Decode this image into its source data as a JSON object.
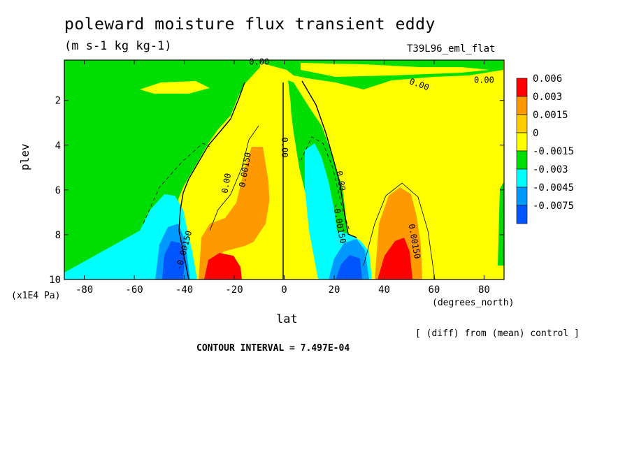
{
  "chart_data": {
    "type": "heatmap",
    "title": "poleward moisture flux transient eddy",
    "subtitle": "(m s-1 kg kg-1)",
    "experiment": "T39L96_eml_flat",
    "xlabel": "lat",
    "x_unit": "(degrees_north)",
    "ylabel": "plev",
    "y_unit": "(x1E4 Pa)",
    "xlim": [
      -88,
      88
    ],
    "ylim": [
      10,
      0.2
    ],
    "x_ticks": [
      -80,
      -60,
      -40,
      -20,
      0,
      20,
      40,
      60,
      80
    ],
    "y_ticks": [
      2,
      4,
      6,
      8,
      10
    ],
    "contour_interval_label": "CONTOUR INTERVAL = 7.497E-04",
    "note": "[ (diff) from (mean) control ]",
    "legend": {
      "placement": "right",
      "levels": [
        "0.006",
        "0.003",
        "0.0015",
        "0",
        "-0.0015",
        "-0.003",
        "-0.0045",
        "-0.0075"
      ],
      "colors": [
        "#ff0000",
        "#ff9900",
        "#ffcc00",
        "#ffff00",
        "#00dd00",
        "#00ffff",
        "#0099ff",
        "#0055ff"
      ]
    },
    "contour_labels": [
      {
        "text": "0.00",
        "lat": -10,
        "plev": 0.3,
        "angle": 0
      },
      {
        "text": "0.00",
        "lat": 54,
        "plev": 1.3,
        "angle": 20
      },
      {
        "text": "0.00",
        "lat": 80,
        "plev": 1.1,
        "angle": 0
      },
      {
        "text": "0.00",
        "lat": 0,
        "plev": 4.1,
        "angle": 90
      },
      {
        "text": "0.00",
        "lat": -23,
        "plev": 5.7,
        "angle": -80
      },
      {
        "text": "0.00150",
        "lat": -15.5,
        "plev": 5.1,
        "angle": -80
      },
      {
        "text": "0.00",
        "lat": 22.5,
        "plev": 5.6,
        "angle": 80
      },
      {
        "text": "-0.00150",
        "lat": 22,
        "plev": 7.5,
        "angle": 80
      },
      {
        "text": "0.00150",
        "lat": 52,
        "plev": 8.3,
        "angle": 80
      },
      {
        "text": "-0.00150",
        "lat": -40,
        "plev": 8.7,
        "angle": -75
      }
    ]
  }
}
